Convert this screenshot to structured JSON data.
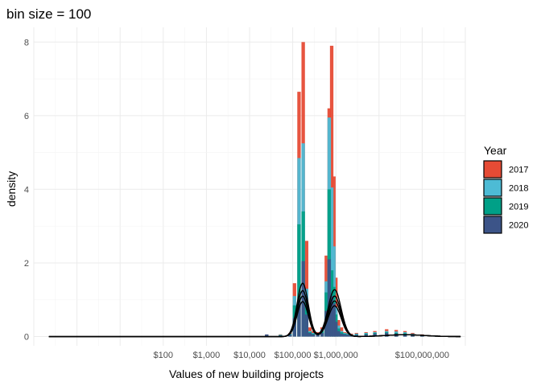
{
  "chart_data": {
    "type": "bar",
    "title": "bin size = 100",
    "xlabel": "Values of new building projects",
    "ylabel": "density",
    "x_scale": "log10",
    "xlim": [
      0.1,
      1000000000
    ],
    "ylim": [
      -0.25,
      8.4
    ],
    "x_ticks": [
      {
        "value": 100,
        "label": "$100"
      },
      {
        "value": 1000,
        "label": "$1,000"
      },
      {
        "value": 10000,
        "label": "$10,000"
      },
      {
        "value": 100000,
        "label": "$100,000"
      },
      {
        "value": 1000000,
        "label": "$1,000,000"
      },
      {
        "value": 100000000,
        "label": "$100,000,000"
      }
    ],
    "y_ticks": [
      0,
      2,
      4,
      6,
      8
    ],
    "grid": true,
    "legend": {
      "title": "Year",
      "position": "right",
      "entries": [
        {
          "label": "2017",
          "color": "#E64B35"
        },
        {
          "label": "2018",
          "color": "#4DBBD5"
        },
        {
          "label": "2019",
          "color": "#00A087"
        },
        {
          "label": "2020",
          "color": "#3C5488"
        }
      ]
    },
    "bin_width_log10": 0.08,
    "bin_centers": [
      25000,
      52000,
      87000,
      110000,
      140000,
      175000,
      210000,
      250000,
      300000,
      380000,
      480000,
      600000,
      700000,
      800000,
      900000,
      1000000,
      1150000,
      1350000,
      1600000,
      1900000,
      2300000,
      3000000,
      5000000,
      8000000,
      15000000,
      25000000,
      40000000,
      60000000,
      100000000,
      200000000
    ],
    "series": [
      {
        "name": "2017",
        "values": [
          0.05,
          0.06,
          0.1,
          1.45,
          6.65,
          8.0,
          2.6,
          0.25,
          0.15,
          0.12,
          0.25,
          2.2,
          6.2,
          7.9,
          4.35,
          1.6,
          0.45,
          0.25,
          0.12,
          0.1,
          0.08,
          0.1,
          0.12,
          0.15,
          0.2,
          0.18,
          0.15,
          0.1,
          0.06,
          0.02
        ]
      },
      {
        "name": "2018",
        "values": [
          0.04,
          0.05,
          0.08,
          1.1,
          4.85,
          5.25,
          1.3,
          0.15,
          0.1,
          0.09,
          0.2,
          1.5,
          5.95,
          4.05,
          2.45,
          0.8,
          0.3,
          0.15,
          0.1,
          0.08,
          0.06,
          0.08,
          0.1,
          0.12,
          0.15,
          0.14,
          0.12,
          0.08,
          0.05,
          0.01
        ]
      },
      {
        "name": "2019",
        "values": [
          0.03,
          0.04,
          0.06,
          0.85,
          3.05,
          3.4,
          0.95,
          0.12,
          0.08,
          0.07,
          0.15,
          1.2,
          4.0,
          1.8,
          1.35,
          0.6,
          0.22,
          0.12,
          0.08,
          0.06,
          0.05,
          0.06,
          0.08,
          0.1,
          0.12,
          0.1,
          0.09,
          0.06,
          0.04,
          0.01
        ]
      },
      {
        "name": "2020",
        "values": [
          0.06,
          0.03,
          0.05,
          0.5,
          0.95,
          2.05,
          0.6,
          0.1,
          0.06,
          0.05,
          0.1,
          0.7,
          2.1,
          1.1,
          0.9,
          0.4,
          0.15,
          0.08,
          0.06,
          0.05,
          0.04,
          0.05,
          0.06,
          0.08,
          0.1,
          0.08,
          0.07,
          0.05,
          0.03,
          0.01
        ]
      }
    ],
    "density_curve_color": "#000000",
    "density_peak_values": {
      "2017": 1.45,
      "2018": 1.25,
      "2019": 1.1,
      "2020": 0.95
    }
  }
}
